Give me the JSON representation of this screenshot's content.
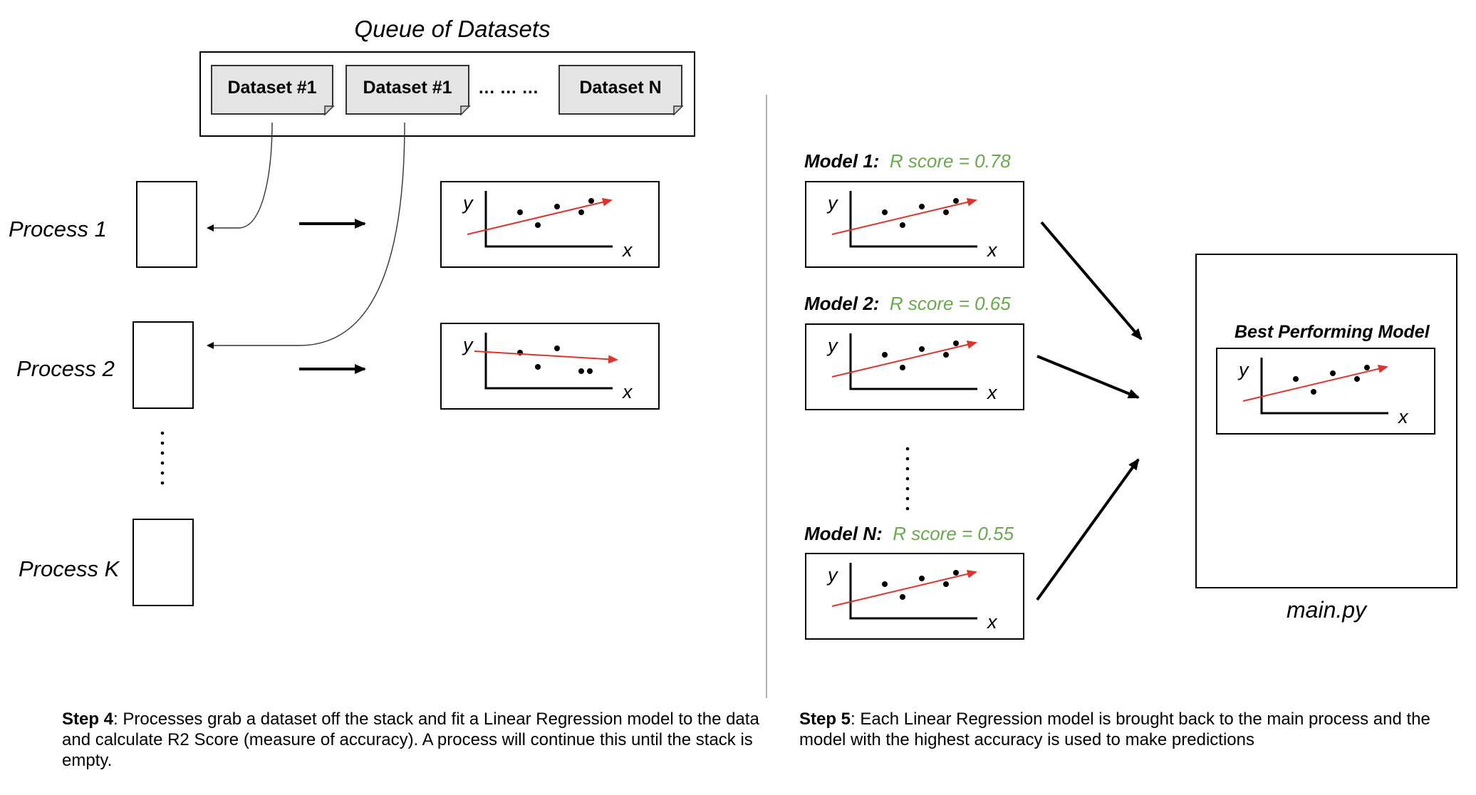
{
  "queue": {
    "title": "Queue of Datasets",
    "datasets": [
      "Dataset #1",
      "Dataset #1",
      "Dataset N"
    ],
    "ellipsis": "... ... ..."
  },
  "processes": [
    "Process 1",
    "Process 2",
    "Process K"
  ],
  "process_dots": "......",
  "axis": {
    "x": "x",
    "y": "y"
  },
  "models": [
    {
      "name": "Model 1:",
      "score": "R score = 0.78"
    },
    {
      "name": "Model 2:",
      "score": "R score = 0.65"
    },
    {
      "name": "Model N:",
      "score": "R score = 0.55"
    }
  ],
  "model_dots": "......",
  "best": {
    "title": "Best Performing Model",
    "file": "main.py"
  },
  "captions": {
    "step4_bold": "Step 4",
    "step4_text": ": Processes grab a dataset off the stack and fit a Linear Regression model to the data and calculate R2 Score (measure of accuracy). A process will continue this until the stack is empty.",
    "step5_bold": "Step 5",
    "step5_text": ": Each Linear Regression model is brought back to the main process and the model with the highest accuracy is used to  make predictions"
  },
  "colors": {
    "trend_line": "#e0332b",
    "score_text": "#6aa84f",
    "dataset_fill": "#e4e4e4"
  }
}
